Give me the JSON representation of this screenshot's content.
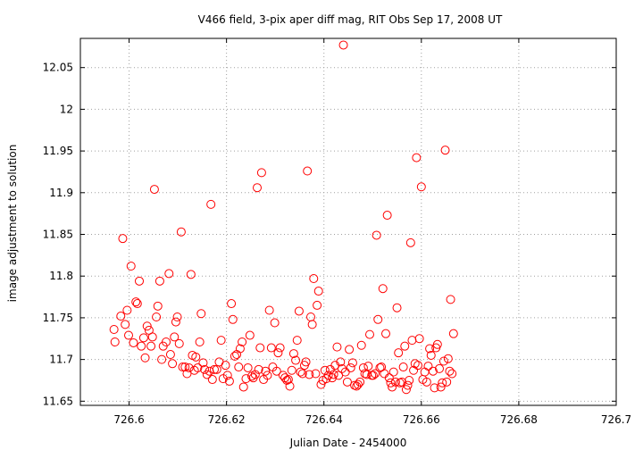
{
  "chart_data": {
    "type": "scatter",
    "title": "V466 field,  3-pix aper diff mag, RIT Obs Sep 17, 2008 UT",
    "xlabel": "Julian Date - 2454000",
    "ylabel": "image adjustment to solution",
    "xlim": [
      726.59,
      726.7
    ],
    "ylim": [
      11.645,
      12.085
    ],
    "xticks": [
      726.6,
      726.62,
      726.64,
      726.66,
      726.68,
      726.7
    ],
    "xtick_labels": [
      "726.6",
      "726.62",
      "726.64",
      "726.66",
      "726.68",
      "726.7"
    ],
    "yticks": [
      11.65,
      11.7,
      11.75,
      11.8,
      11.85,
      11.9,
      11.95,
      12.0,
      12.05
    ],
    "ytick_labels": [
      "11.65",
      "11.7",
      "11.75",
      "11.8",
      "11.85",
      "11.9",
      "11.95",
      "12",
      "12.05"
    ],
    "grid": true,
    "marker_color": "#ff0000",
    "series": [
      {
        "name": "",
        "points": [
          [
            726.5969,
            11.736
          ],
          [
            726.5971,
            11.721
          ],
          [
            726.5983,
            11.752
          ],
          [
            726.5987,
            11.845
          ],
          [
            726.5992,
            11.742
          ],
          [
            726.5996,
            11.759
          ],
          [
            726.5999,
            11.729
          ],
          [
            726.6004,
            11.812
          ],
          [
            726.6009,
            11.72
          ],
          [
            726.6014,
            11.769
          ],
          [
            726.6017,
            11.767
          ],
          [
            726.6021,
            11.794
          ],
          [
            726.6025,
            11.716
          ],
          [
            726.603,
            11.726
          ],
          [
            726.6033,
            11.702
          ],
          [
            726.6037,
            11.74
          ],
          [
            726.6041,
            11.735
          ],
          [
            726.6045,
            11.716
          ],
          [
            726.6048,
            11.727
          ],
          [
            726.6052,
            11.904
          ],
          [
            726.6056,
            11.751
          ],
          [
            726.6059,
            11.764
          ],
          [
            726.6063,
            11.794
          ],
          [
            726.6067,
            11.7
          ],
          [
            726.607,
            11.716
          ],
          [
            726.6076,
            11.721
          ],
          [
            726.6082,
            11.803
          ],
          [
            726.6085,
            11.706
          ],
          [
            726.6089,
            11.695
          ],
          [
            726.6093,
            11.727
          ],
          [
            726.6096,
            11.745
          ],
          [
            726.6099,
            11.751
          ],
          [
            726.6103,
            11.719
          ],
          [
            726.6107,
            11.853
          ],
          [
            726.611,
            11.691
          ],
          [
            726.6115,
            11.691
          ],
          [
            726.6119,
            11.683
          ],
          [
            726.6123,
            11.69
          ],
          [
            726.6127,
            11.802
          ],
          [
            726.613,
            11.705
          ],
          [
            726.6134,
            11.687
          ],
          [
            726.6137,
            11.703
          ],
          [
            726.6141,
            11.69
          ],
          [
            726.6145,
            11.721
          ],
          [
            726.6148,
            11.755
          ],
          [
            726.6152,
            11.696
          ],
          [
            726.6155,
            11.688
          ],
          [
            726.616,
            11.682
          ],
          [
            726.6165,
            11.686
          ],
          [
            726.6168,
            11.886
          ],
          [
            726.6171,
            11.676
          ],
          [
            726.6175,
            11.688
          ],
          [
            726.618,
            11.688
          ],
          [
            726.6185,
            11.697
          ],
          [
            726.6189,
            11.723
          ],
          [
            726.6193,
            11.677
          ],
          [
            726.6198,
            11.693
          ],
          [
            726.6202,
            11.681
          ],
          [
            726.6206,
            11.674
          ],
          [
            726.621,
            11.767
          ],
          [
            726.6213,
            11.748
          ],
          [
            726.6217,
            11.704
          ],
          [
            726.6221,
            11.706
          ],
          [
            726.6225,
            11.691
          ],
          [
            726.6228,
            11.713
          ],
          [
            726.6232,
            11.721
          ],
          [
            726.6235,
            11.667
          ],
          [
            726.624,
            11.677
          ],
          [
            726.6244,
            11.69
          ],
          [
            726.6248,
            11.729
          ],
          [
            726.6252,
            11.68
          ],
          [
            726.6255,
            11.678
          ],
          [
            726.6259,
            11.682
          ],
          [
            726.6263,
            11.906
          ],
          [
            726.6266,
            11.688
          ],
          [
            726.6269,
            11.714
          ],
          [
            726.6272,
            11.924
          ],
          [
            726.6276,
            11.676
          ],
          [
            726.628,
            11.686
          ],
          [
            726.6284,
            11.681
          ],
          [
            726.6288,
            11.759
          ],
          [
            726.6292,
            11.714
          ],
          [
            726.6295,
            11.691
          ],
          [
            726.6299,
            11.744
          ],
          [
            726.6303,
            11.686
          ],
          [
            726.6306,
            11.708
          ],
          [
            726.631,
            11.714
          ],
          [
            726.6316,
            11.681
          ],
          [
            726.632,
            11.678
          ],
          [
            726.6324,
            11.675
          ],
          [
            726.6327,
            11.676
          ],
          [
            726.633,
            11.668
          ],
          [
            726.6334,
            11.687
          ],
          [
            726.6338,
            11.707
          ],
          [
            726.6342,
            11.699
          ],
          [
            726.6345,
            11.723
          ],
          [
            726.6349,
            11.758
          ],
          [
            726.6352,
            11.685
          ],
          [
            726.6356,
            11.683
          ],
          [
            726.636,
            11.693
          ],
          [
            726.6363,
            11.697
          ],
          [
            726.6366,
            11.926
          ],
          [
            726.637,
            11.682
          ],
          [
            726.6373,
            11.751
          ],
          [
            726.6376,
            11.742
          ],
          [
            726.6379,
            11.797
          ],
          [
            726.6383,
            11.683
          ],
          [
            726.6386,
            11.765
          ],
          [
            726.6389,
            11.782
          ],
          [
            726.6394,
            11.67
          ],
          [
            726.6398,
            11.675
          ],
          [
            726.6402,
            11.687
          ],
          [
            726.6405,
            11.677
          ],
          [
            726.6409,
            11.681
          ],
          [
            726.6413,
            11.688
          ],
          [
            726.6417,
            11.678
          ],
          [
            726.642,
            11.682
          ],
          [
            726.6423,
            11.693
          ],
          [
            726.6427,
            11.715
          ],
          [
            726.643,
            11.681
          ],
          [
            726.6434,
            11.697
          ],
          [
            726.6437,
            11.689
          ],
          [
            726.644,
            12.077
          ],
          [
            726.6444,
            11.685
          ],
          [
            726.6448,
            11.673
          ],
          [
            726.6452,
            11.712
          ],
          [
            726.6455,
            11.69
          ],
          [
            726.6459,
            11.696
          ],
          [
            726.6463,
            11.669
          ],
          [
            726.6467,
            11.668
          ],
          [
            726.647,
            11.67
          ],
          [
            726.6474,
            11.673
          ],
          [
            726.6477,
            11.717
          ],
          [
            726.6481,
            11.69
          ],
          [
            726.6484,
            11.683
          ],
          [
            726.6488,
            11.682
          ],
          [
            726.6491,
            11.692
          ],
          [
            726.6494,
            11.73
          ],
          [
            726.6498,
            11.681
          ],
          [
            726.6501,
            11.681
          ],
          [
            726.6505,
            11.683
          ],
          [
            726.6508,
            11.849
          ],
          [
            726.6511,
            11.748
          ],
          [
            726.6515,
            11.69
          ],
          [
            726.6518,
            11.691
          ],
          [
            726.6521,
            11.785
          ],
          [
            726.6524,
            11.683
          ],
          [
            726.6527,
            11.731
          ],
          [
            726.653,
            11.873
          ],
          [
            726.6534,
            11.678
          ],
          [
            726.6537,
            11.672
          ],
          [
            726.654,
            11.667
          ],
          [
            726.6543,
            11.685
          ],
          [
            726.6547,
            11.673
          ],
          [
            726.655,
            11.762
          ],
          [
            726.6553,
            11.708
          ],
          [
            726.6556,
            11.672
          ],
          [
            726.656,
            11.673
          ],
          [
            726.6563,
            11.691
          ],
          [
            726.6566,
            11.716
          ],
          [
            726.6569,
            11.664
          ],
          [
            726.6572,
            11.669
          ],
          [
            726.6575,
            11.675
          ],
          [
            726.6578,
            11.84
          ],
          [
            726.6581,
            11.723
          ],
          [
            726.6584,
            11.687
          ],
          [
            726.6587,
            11.695
          ],
          [
            726.659,
            11.942
          ],
          [
            726.6593,
            11.693
          ],
          [
            726.6596,
            11.725
          ],
          [
            726.66,
            11.907
          ],
          [
            726.6603,
            11.676
          ],
          [
            726.6607,
            11.685
          ],
          [
            726.6611,
            11.673
          ],
          [
            726.6614,
            11.692
          ],
          [
            726.6617,
            11.713
          ],
          [
            726.662,
            11.705
          ],
          [
            726.6624,
            11.686
          ],
          [
            726.6627,
            11.666
          ],
          [
            726.663,
            11.714
          ],
          [
            726.6633,
            11.718
          ],
          [
            726.6637,
            11.689
          ],
          [
            726.664,
            11.667
          ],
          [
            726.6643,
            11.672
          ],
          [
            726.6646,
            11.698
          ],
          [
            726.6649,
            11.951
          ],
          [
            726.6652,
            11.673
          ],
          [
            726.6655,
            11.701
          ],
          [
            726.6658,
            11.686
          ],
          [
            726.666,
            11.772
          ],
          [
            726.6663,
            11.683
          ],
          [
            726.6666,
            11.731
          ]
        ]
      }
    ]
  }
}
